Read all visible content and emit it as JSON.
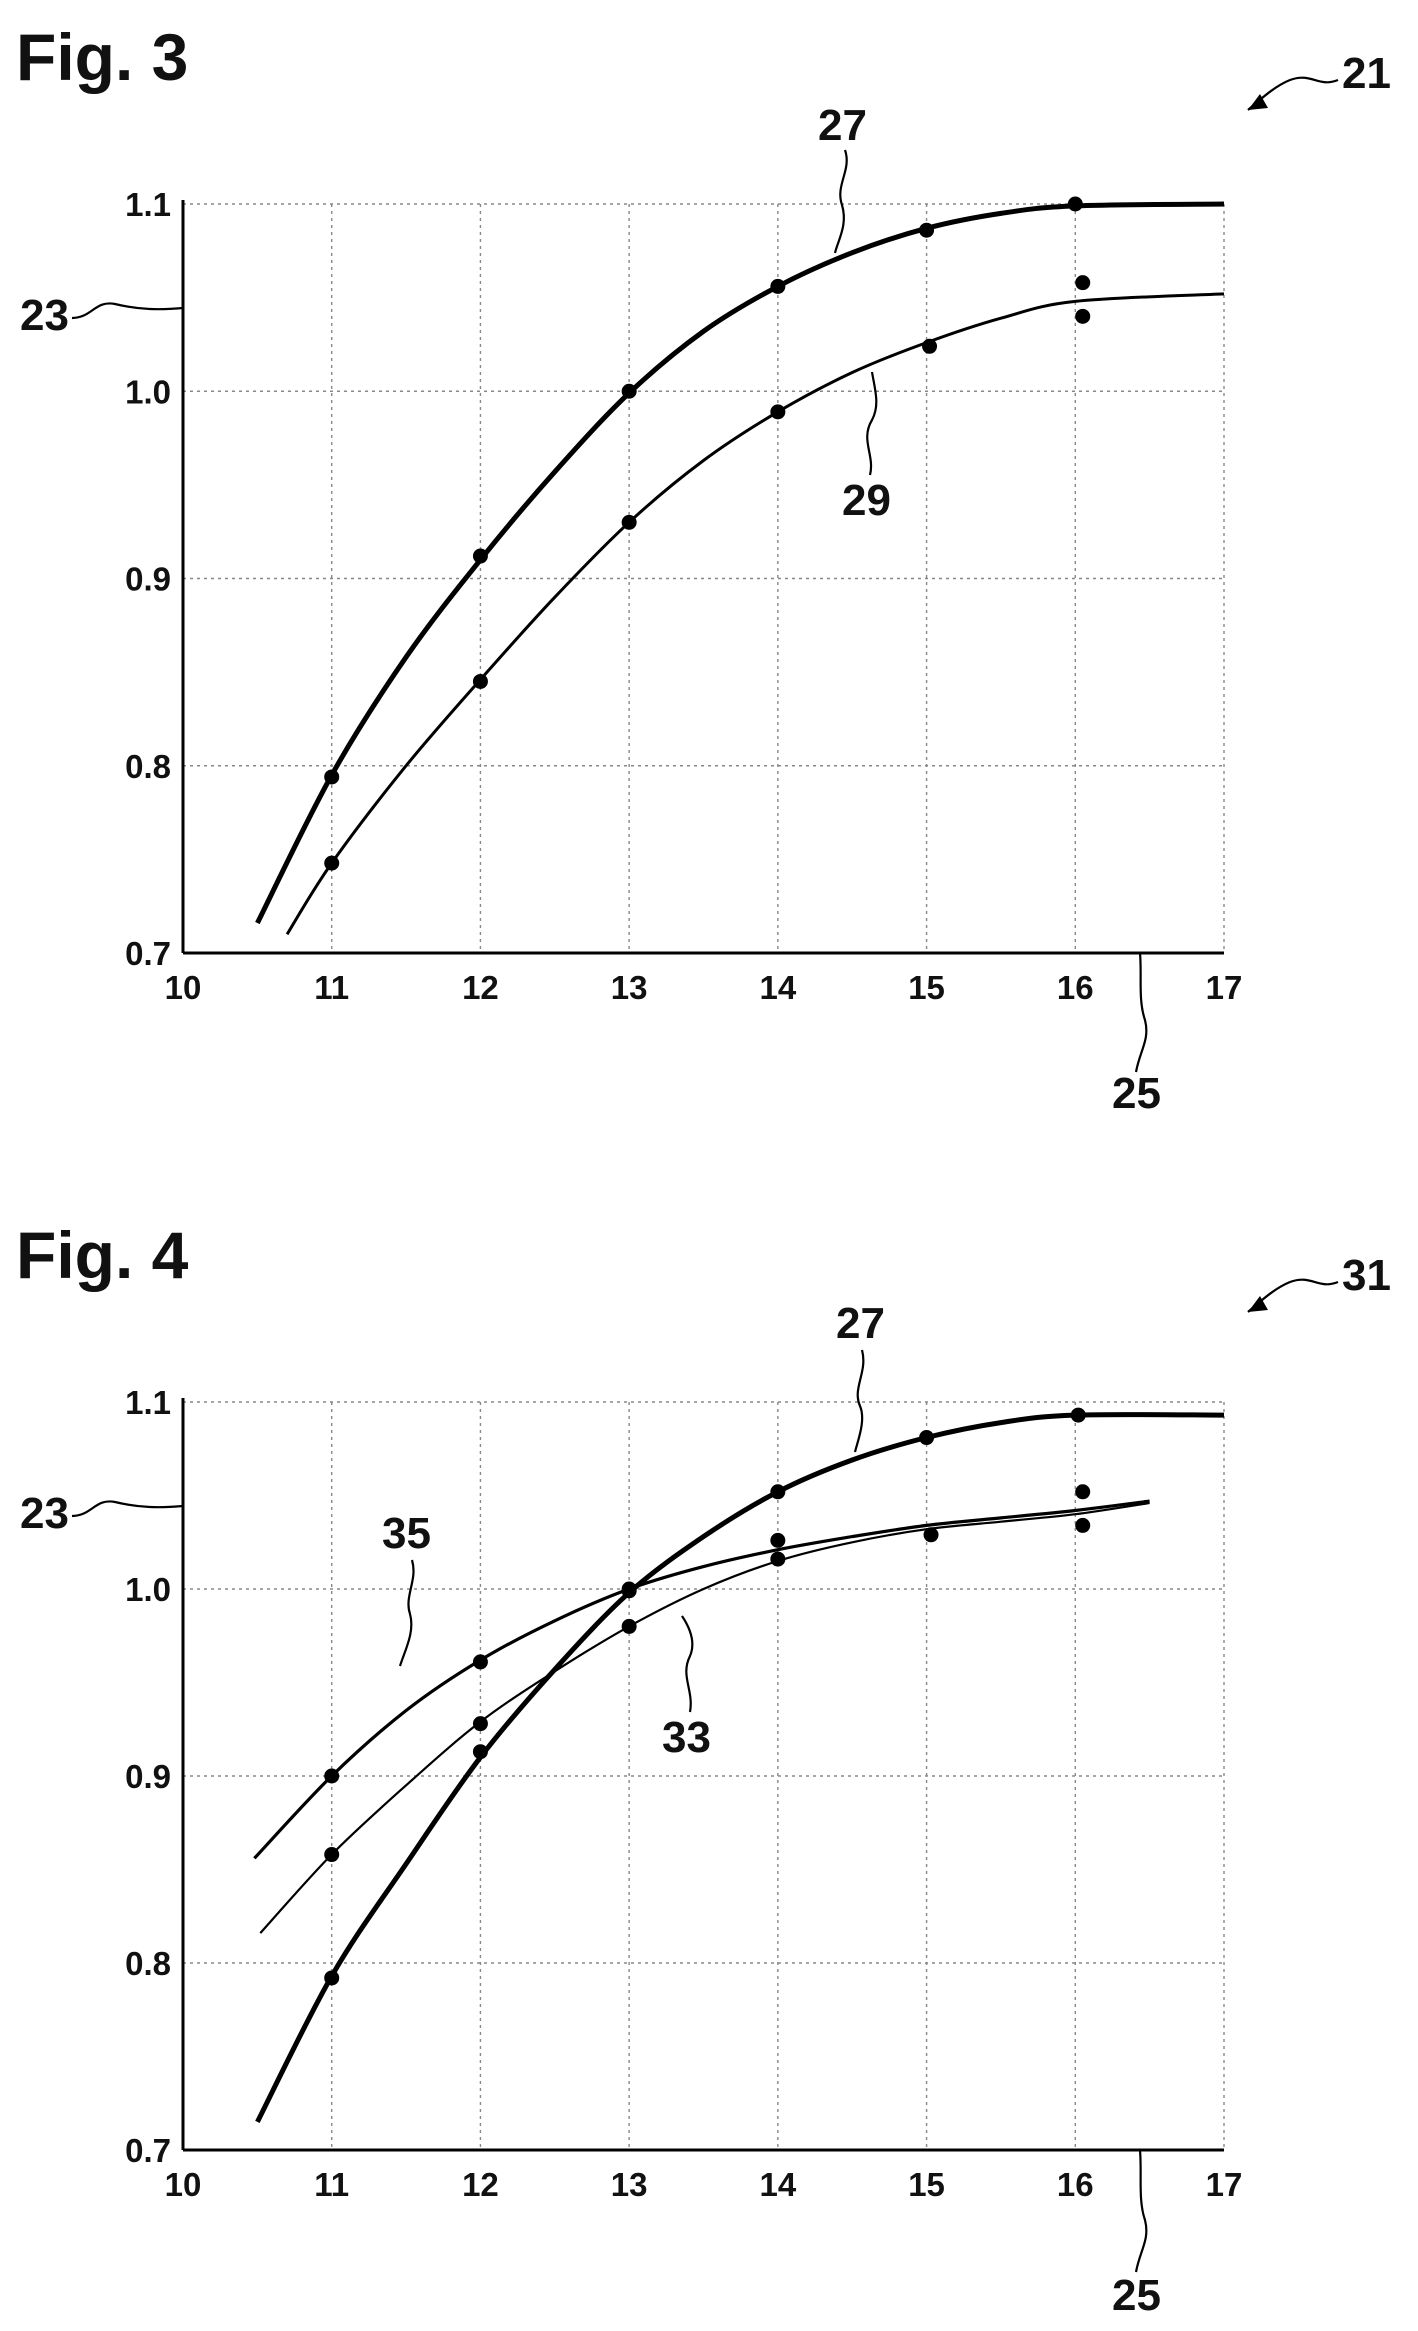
{
  "chart_data": [
    {
      "type": "line",
      "title": "Fig. 3",
      "figure_ref": "21",
      "axis_refs": {
        "y": "23",
        "x": "25"
      },
      "x_ticks": [
        "10",
        "11",
        "12",
        "13",
        "14",
        "15",
        "16",
        "17"
      ],
      "y_ticks": [
        "0.7",
        "0.8",
        "0.9",
        "1.0",
        "1.1"
      ],
      "xlim": [
        10,
        17
      ],
      "ylim": [
        0.7,
        1.1
      ],
      "grid": true,
      "series": [
        {
          "ref": "27",
          "curve": [
            [
              10.5,
              0.716
            ],
            [
              11,
              0.795
            ],
            [
              11.5,
              0.858
            ],
            [
              12,
              0.91
            ],
            [
              12.5,
              0.957
            ],
            [
              13,
              0.999
            ],
            [
              13.5,
              1.032
            ],
            [
              14,
              1.056
            ],
            [
              14.5,
              1.074
            ],
            [
              15,
              1.087
            ],
            [
              15.5,
              1.095
            ],
            [
              16,
              1.099
            ],
            [
              17,
              1.1
            ]
          ],
          "points": [
            [
              11,
              0.794
            ],
            [
              12,
              0.912
            ],
            [
              13,
              1.0
            ],
            [
              14,
              1.056
            ],
            [
              15,
              1.086
            ],
            [
              16,
              1.1
            ],
            [
              16.05,
              1.058
            ]
          ]
        },
        {
          "ref": "29",
          "curve": [
            [
              10.7,
              0.71
            ],
            [
              11,
              0.748
            ],
            [
              11.5,
              0.8
            ],
            [
              12,
              0.846
            ],
            [
              12.5,
              0.89
            ],
            [
              13,
              0.93
            ],
            [
              13.5,
              0.963
            ],
            [
              14,
              0.989
            ],
            [
              14.5,
              1.01
            ],
            [
              15,
              1.026
            ],
            [
              15.5,
              1.039
            ],
            [
              16,
              1.048
            ],
            [
              17,
              1.052
            ]
          ],
          "points": [
            [
              11,
              0.748
            ],
            [
              12,
              0.845
            ],
            [
              13,
              0.93
            ],
            [
              14,
              0.989
            ],
            [
              15.02,
              1.024
            ],
            [
              16.05,
              1.04
            ]
          ]
        }
      ]
    },
    {
      "type": "line",
      "title": "Fig. 4",
      "figure_ref": "31",
      "axis_refs": {
        "y": "23",
        "x": "25"
      },
      "x_ticks": [
        "10",
        "11",
        "12",
        "13",
        "14",
        "15",
        "16",
        "17"
      ],
      "y_ticks": [
        "0.7",
        "0.8",
        "0.9",
        "1.0",
        "1.1"
      ],
      "xlim": [
        10,
        17
      ],
      "ylim": [
        0.7,
        1.1
      ],
      "grid": true,
      "series": [
        {
          "ref": "27",
          "curve": [
            [
              10.5,
              0.715
            ],
            [
              11,
              0.793
            ],
            [
              11.5,
              0.853
            ],
            [
              12,
              0.91
            ],
            [
              12.5,
              0.957
            ],
            [
              13,
              0.998
            ],
            [
              13.5,
              1.028
            ],
            [
              14,
              1.052
            ],
            [
              14.5,
              1.069
            ],
            [
              15,
              1.081
            ],
            [
              15.5,
              1.089
            ],
            [
              16,
              1.093
            ],
            [
              17,
              1.093
            ]
          ],
          "points": [
            [
              11,
              0.792
            ],
            [
              12,
              0.913
            ],
            [
              13,
              0.999
            ],
            [
              14,
              1.052
            ],
            [
              15,
              1.081
            ],
            [
              16.02,
              1.093
            ]
          ]
        },
        {
          "ref": "33",
          "curve": [
            [
              10.52,
              0.816
            ],
            [
              11,
              0.858
            ],
            [
              11.5,
              0.895
            ],
            [
              12,
              0.929
            ],
            [
              12.5,
              0.956
            ],
            [
              13,
              0.98
            ],
            [
              13.5,
              1.0
            ],
            [
              14,
              1.015
            ],
            [
              14.5,
              1.025
            ],
            [
              15,
              1.032
            ],
            [
              15.5,
              1.036
            ],
            [
              16,
              1.04
            ],
            [
              16.5,
              1.046
            ]
          ],
          "points": [
            [
              11,
              0.858
            ],
            [
              12,
              0.928
            ],
            [
              13,
              0.98
            ],
            [
              14,
              1.016
            ],
            [
              15.03,
              1.029
            ],
            [
              16.05,
              1.034
            ]
          ]
        },
        {
          "ref": "35",
          "curve": [
            [
              10.48,
              0.856
            ],
            [
              11,
              0.9
            ],
            [
              11.5,
              0.935
            ],
            [
              12,
              0.962
            ],
            [
              12.5,
              0.983
            ],
            [
              13,
              1.0
            ],
            [
              13.5,
              1.012
            ],
            [
              14,
              1.021
            ],
            [
              14.5,
              1.028
            ],
            [
              15,
              1.034
            ],
            [
              15.5,
              1.038
            ],
            [
              16,
              1.042
            ],
            [
              16.5,
              1.047
            ]
          ],
          "points": [
            [
              11,
              0.9
            ],
            [
              12,
              0.961
            ],
            [
              13,
              1.0
            ],
            [
              14,
              1.026
            ],
            [
              16.05,
              1.052
            ]
          ]
        }
      ]
    }
  ]
}
